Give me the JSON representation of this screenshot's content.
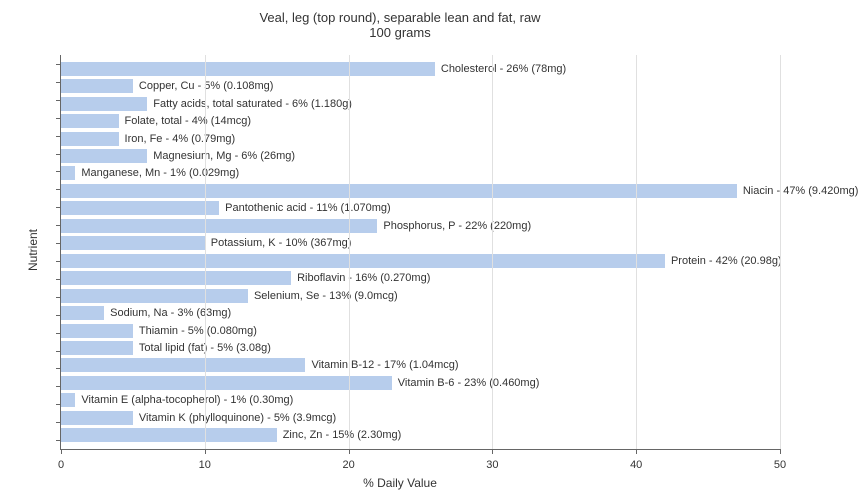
{
  "chart": {
    "type": "bar-horizontal",
    "title_line1": "Veal, leg (top round), separable lean and fat, raw",
    "title_line2": "100 grams",
    "title_fontsize": 13,
    "ylabel": "Nutrient",
    "xlabel": "% Daily Value",
    "label_fontsize": 12,
    "xlim_min": 0,
    "xlim_max": 50,
    "xtick_step": 10,
    "xticks": [
      0,
      10,
      20,
      30,
      40,
      50
    ],
    "bar_color": "#b7cdec",
    "background_color": "#ffffff",
    "grid_color": "#e0e0e0",
    "axis_color": "#666666",
    "text_color": "#333333",
    "bar_label_fontsize": 11,
    "tick_label_fontsize": 11,
    "nutrients": [
      {
        "label": "Cholesterol - 26% (78mg)",
        "value": 26
      },
      {
        "label": "Copper, Cu - 5% (0.108mg)",
        "value": 5
      },
      {
        "label": "Fatty acids, total saturated - 6% (1.180g)",
        "value": 6
      },
      {
        "label": "Folate, total - 4% (14mcg)",
        "value": 4
      },
      {
        "label": "Iron, Fe - 4% (0.79mg)",
        "value": 4
      },
      {
        "label": "Magnesium, Mg - 6% (26mg)",
        "value": 6
      },
      {
        "label": "Manganese, Mn - 1% (0.029mg)",
        "value": 1
      },
      {
        "label": "Niacin - 47% (9.420mg)",
        "value": 47
      },
      {
        "label": "Pantothenic acid - 11% (1.070mg)",
        "value": 11
      },
      {
        "label": "Phosphorus, P - 22% (220mg)",
        "value": 22
      },
      {
        "label": "Potassium, K - 10% (367mg)",
        "value": 10
      },
      {
        "label": "Protein - 42% (20.98g)",
        "value": 42
      },
      {
        "label": "Riboflavin - 16% (0.270mg)",
        "value": 16
      },
      {
        "label": "Selenium, Se - 13% (9.0mcg)",
        "value": 13
      },
      {
        "label": "Sodium, Na - 3% (63mg)",
        "value": 3
      },
      {
        "label": "Thiamin - 5% (0.080mg)",
        "value": 5
      },
      {
        "label": "Total lipid (fat) - 5% (3.08g)",
        "value": 5
      },
      {
        "label": "Vitamin B-12 - 17% (1.04mcg)",
        "value": 17
      },
      {
        "label": "Vitamin B-6 - 23% (0.460mg)",
        "value": 23
      },
      {
        "label": "Vitamin E (alpha-tocopherol) - 1% (0.30mg)",
        "value": 1
      },
      {
        "label": "Vitamin K (phylloquinone) - 5% (3.9mcg)",
        "value": 5
      },
      {
        "label": "Zinc, Zn - 15% (2.30mg)",
        "value": 15
      }
    ]
  }
}
